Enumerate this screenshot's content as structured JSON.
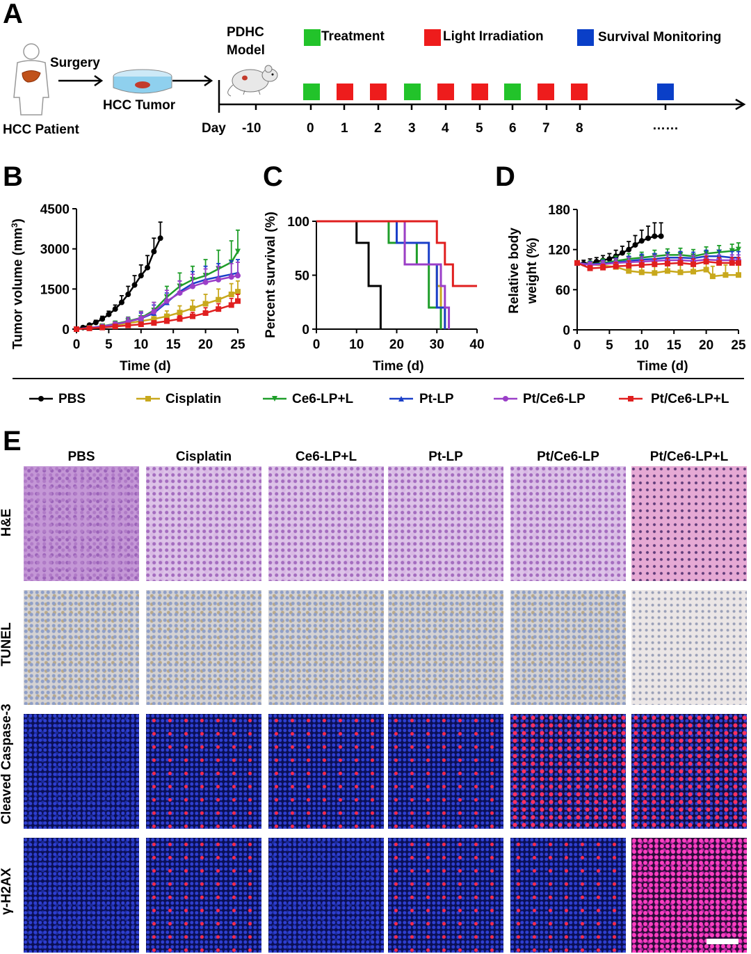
{
  "panels": {
    "a": "A",
    "b": "B",
    "c": "C",
    "d": "D",
    "e": "E"
  },
  "schematic": {
    "patient_label": "HCC Patient",
    "surgery_label": "Surgery",
    "tumor_label": "HCC Tumor",
    "model_label_1": "PDHC",
    "model_label_2": "Model",
    "legend": [
      {
        "label": "Treatment",
        "color": "#22c32a"
      },
      {
        "label": "Light Irradiation",
        "color": "#ee1c1c"
      },
      {
        "label": "Survival Monitoring",
        "color": "#0a3fc8"
      }
    ],
    "day_label": "Day",
    "ticks": [
      "-10",
      "0",
      "1",
      "2",
      "3",
      "4",
      "5",
      "6",
      "7",
      "8"
    ],
    "ellipsis": "……",
    "events": [
      "Treatment",
      "Light Irradiation",
      "Light Irradiation",
      "Treatment",
      "Light Irradiation",
      "Light Irradiation",
      "Treatment",
      "Light Irradiation",
      "Light Irradiation",
      "Survival Monitoring"
    ]
  },
  "chart_data": [
    {
      "type": "line",
      "panel": "B",
      "xlabel": "Time (d)",
      "ylabel": "Tumor volume (mm³)",
      "ylabel_main": "Tumor volume (mm",
      "ylabel_sup": "3",
      "ylabel_end": ")",
      "xlim": [
        0,
        25
      ],
      "ylim": [
        0,
        4500
      ],
      "xticks": [
        0,
        5,
        10,
        15,
        20,
        25
      ],
      "yticks": [
        0,
        1500,
        3000,
        4500
      ],
      "series": [
        {
          "name": "PBS",
          "color": "#000000",
          "x": [
            0,
            1,
            2,
            3,
            4,
            5,
            6,
            7,
            8,
            9,
            10,
            11,
            12,
            13
          ],
          "y": [
            0,
            60,
            150,
            250,
            380,
            550,
            750,
            1000,
            1300,
            1650,
            2000,
            2300,
            2900,
            3400
          ],
          "err": [
            0,
            30,
            50,
            80,
            100,
            120,
            150,
            250,
            300,
            350,
            400,
            450,
            500,
            600
          ]
        },
        {
          "name": "Cisplatin",
          "color": "#c8a81c",
          "x": [
            0,
            2,
            4,
            6,
            8,
            10,
            12,
            14,
            16,
            18,
            20,
            22,
            24,
            25
          ],
          "y": [
            0,
            40,
            90,
            150,
            220,
            300,
            380,
            480,
            620,
            780,
            950,
            1100,
            1300,
            1400
          ],
          "err": [
            0,
            20,
            40,
            60,
            80,
            100,
            150,
            200,
            250,
            300,
            350,
            400,
            400,
            400
          ]
        },
        {
          "name": "Ce6-LP+L",
          "color": "#1f9e2a",
          "x": [
            0,
            2,
            4,
            6,
            8,
            10,
            12,
            14,
            16,
            18,
            20,
            22,
            24,
            25
          ],
          "y": [
            0,
            50,
            110,
            200,
            300,
            420,
            700,
            1200,
            1600,
            1850,
            2000,
            2250,
            2500,
            2900
          ],
          "err": [
            0,
            30,
            60,
            100,
            150,
            250,
            300,
            400,
            500,
            500,
            600,
            700,
            800,
            800
          ]
        },
        {
          "name": "Pt-LP",
          "color": "#1a3fc8",
          "x": [
            0,
            2,
            4,
            6,
            8,
            10,
            12,
            14,
            16,
            18,
            20,
            22,
            24,
            25
          ],
          "y": [
            0,
            50,
            100,
            180,
            280,
            400,
            600,
            1000,
            1400,
            1700,
            1850,
            1950,
            2050,
            2100
          ],
          "err": [
            0,
            30,
            50,
            80,
            150,
            200,
            300,
            350,
            400,
            450,
            500,
            500,
            500,
            500
          ]
        },
        {
          "name": "Pt/Ce6-LP",
          "color": "#9b3fc8",
          "x": [
            0,
            2,
            4,
            6,
            8,
            10,
            12,
            14,
            16,
            18,
            20,
            22,
            24,
            25
          ],
          "y": [
            0,
            50,
            100,
            180,
            280,
            400,
            650,
            1050,
            1350,
            1600,
            1750,
            1850,
            1950,
            2000
          ],
          "err": [
            0,
            30,
            60,
            90,
            150,
            250,
            350,
            400,
            450,
            450,
            500,
            500,
            500,
            500
          ]
        },
        {
          "name": "Pt/Ce6-LP+L",
          "color": "#e01f1f",
          "x": [
            0,
            2,
            4,
            6,
            8,
            10,
            12,
            14,
            16,
            18,
            20,
            22,
            24,
            25
          ],
          "y": [
            0,
            30,
            60,
            100,
            140,
            180,
            230,
            300,
            380,
            480,
            600,
            750,
            900,
            1050
          ],
          "err": [
            0,
            20,
            30,
            40,
            50,
            60,
            80,
            100,
            120,
            150,
            200,
            200,
            250,
            250
          ]
        }
      ]
    },
    {
      "type": "line",
      "panel": "C",
      "xlabel": "Time (d)",
      "ylabel": "Percent survival (%)",
      "xlim": [
        0,
        40
      ],
      "ylim": [
        0,
        100
      ],
      "xticks": [
        0,
        10,
        20,
        30,
        40
      ],
      "yticks": [
        0,
        50,
        100
      ],
      "series": [
        {
          "name": "PBS",
          "color": "#000000",
          "x": [
            0,
            10,
            10,
            13,
            13,
            16,
            16
          ],
          "y": [
            100,
            100,
            80,
            80,
            40,
            40,
            0
          ]
        },
        {
          "name": "Cisplatin",
          "color": "#c8a81c",
          "x": [
            0,
            22,
            22,
            30,
            30,
            31,
            31,
            32,
            32
          ],
          "y": [
            100,
            100,
            60,
            60,
            40,
            40,
            20,
            20,
            0
          ]
        },
        {
          "name": "Ce6-LP+L",
          "color": "#1f9e2a",
          "x": [
            0,
            18,
            18,
            25,
            25,
            28,
            28,
            31,
            31
          ],
          "y": [
            100,
            100,
            80,
            80,
            60,
            60,
            20,
            20,
            0
          ]
        },
        {
          "name": "Pt-LP",
          "color": "#1a3fc8",
          "x": [
            0,
            20,
            20,
            28,
            28,
            30,
            30,
            32,
            32
          ],
          "y": [
            100,
            100,
            80,
            80,
            60,
            60,
            20,
            20,
            0
          ]
        },
        {
          "name": "Pt/Ce6-LP",
          "color": "#9b3fc8",
          "x": [
            0,
            22,
            22,
            31,
            31,
            32,
            32,
            33,
            33
          ],
          "y": [
            100,
            100,
            60,
            60,
            40,
            40,
            20,
            20,
            0
          ]
        },
        {
          "name": "Pt/Ce6-LP+L",
          "color": "#e01f1f",
          "x": [
            0,
            30,
            30,
            32,
            32,
            34,
            34,
            40
          ],
          "y": [
            100,
            100,
            80,
            80,
            60,
            60,
            40,
            40
          ]
        }
      ]
    },
    {
      "type": "line",
      "panel": "D",
      "xlabel": "Time (d)",
      "ylabel_1": "Relative body",
      "ylabel_2": "weight (%)",
      "xlim": [
        0,
        25
      ],
      "ylim": [
        0,
        180
      ],
      "xticks": [
        0,
        5,
        10,
        15,
        20,
        25
      ],
      "yticks": [
        0,
        60,
        120,
        180
      ],
      "series": [
        {
          "name": "PBS",
          "color": "#000000",
          "x": [
            0,
            1,
            2,
            3,
            4,
            5,
            6,
            7,
            8,
            9,
            10,
            11,
            12,
            13
          ],
          "y": [
            100,
            99,
            100,
            102,
            104,
            106,
            110,
            115,
            120,
            127,
            133,
            137,
            140,
            140
          ],
          "err": [
            0,
            5,
            6,
            6,
            7,
            8,
            9,
            10,
            12,
            14,
            16,
            18,
            20,
            20
          ]
        },
        {
          "name": "Cisplatin",
          "color": "#c8a81c",
          "x": [
            0,
            2,
            4,
            6,
            8,
            10,
            12,
            14,
            16,
            18,
            20,
            21,
            23,
            25
          ],
          "y": [
            100,
            98,
            96,
            94,
            88,
            86,
            85,
            88,
            86,
            87,
            90,
            80,
            82,
            82
          ],
          "err": [
            0,
            4,
            5,
            6,
            8,
            10,
            12,
            12,
            12,
            14,
            14,
            15,
            15,
            15
          ]
        },
        {
          "name": "Ce6-LP+L",
          "color": "#1f9e2a",
          "x": [
            0,
            2,
            4,
            6,
            8,
            10,
            12,
            14,
            16,
            18,
            20,
            22,
            24,
            25
          ],
          "y": [
            100,
            98,
            100,
            103,
            106,
            108,
            110,
            112,
            112,
            110,
            114,
            116,
            118,
            120
          ],
          "err": [
            0,
            5,
            6,
            7,
            8,
            8,
            9,
            9,
            10,
            10,
            10,
            10,
            10,
            10
          ]
        },
        {
          "name": "Pt-LP",
          "color": "#1a3fc8",
          "x": [
            0,
            2,
            4,
            6,
            8,
            10,
            12,
            14,
            16,
            18,
            20,
            22,
            24,
            25
          ],
          "y": [
            100,
            98,
            99,
            101,
            103,
            105,
            106,
            108,
            108,
            107,
            110,
            110,
            108,
            108
          ],
          "err": [
            0,
            4,
            5,
            6,
            7,
            8,
            8,
            8,
            9,
            9,
            9,
            9,
            9,
            9
          ]
        },
        {
          "name": "Pt/Ce6-LP",
          "color": "#9b3fc8",
          "x": [
            0,
            2,
            4,
            6,
            8,
            10,
            12,
            14,
            16,
            18,
            20,
            22,
            24,
            25
          ],
          "y": [
            100,
            97,
            98,
            100,
            101,
            102,
            103,
            104,
            104,
            103,
            105,
            104,
            104,
            104
          ],
          "err": [
            0,
            4,
            5,
            6,
            7,
            7,
            8,
            8,
            8,
            8,
            8,
            8,
            8,
            8
          ]
        },
        {
          "name": "Pt/Ce6-LP+L",
          "color": "#e01f1f",
          "x": [
            0,
            2,
            4,
            6,
            8,
            10,
            12,
            14,
            16,
            18,
            20,
            22,
            24,
            25
          ],
          "y": [
            100,
            92,
            93,
            95,
            96,
            97,
            98,
            99,
            100,
            98,
            102,
            100,
            100,
            100
          ],
          "err": [
            0,
            4,
            5,
            6,
            7,
            7,
            8,
            8,
            8,
            8,
            8,
            8,
            8,
            8
          ]
        }
      ]
    }
  ],
  "legend_row": [
    {
      "name": "PBS",
      "color": "#000000",
      "marker": "circle"
    },
    {
      "name": "Cisplatin",
      "color": "#c8a81c",
      "marker": "square"
    },
    {
      "name": "Ce6-LP+L",
      "color": "#1f9e2a",
      "marker": "triangle-down"
    },
    {
      "name": "Pt-LP",
      "color": "#1a3fc8",
      "marker": "triangle-up"
    },
    {
      "name": "Pt/Ce6-LP",
      "color": "#9b3fc8",
      "marker": "circle"
    },
    {
      "name": "Pt/Ce6-LP+L",
      "color": "#e01f1f",
      "marker": "square"
    }
  ],
  "panel_e": {
    "columns": [
      "PBS",
      "Cisplatin",
      "Ce6-LP+L",
      "Pt-LP",
      "Pt/Ce6-LP",
      "Pt/Ce6-LP+L"
    ],
    "rows": [
      "H&E",
      "TUNEL",
      "Cleaved Caspase-3",
      "γ-H2AX"
    ]
  }
}
